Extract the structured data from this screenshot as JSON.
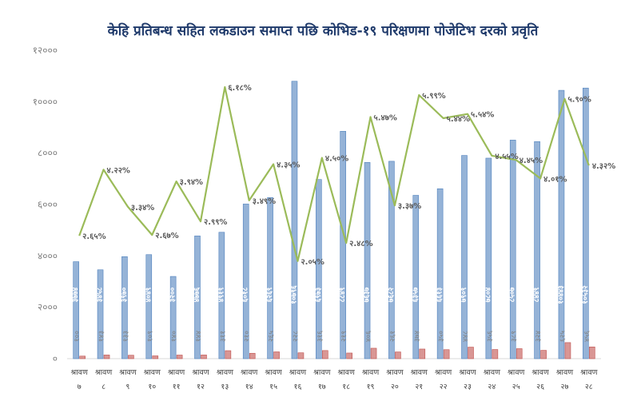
{
  "chart_data": {
    "type": "bar",
    "title": "केहि प्रतिबन्ध सहित लकडाउन समाप्त पछि कोभिड-१९ परिक्षणमा पोजेटिभ दरको प्रवृति",
    "ylim": [
      0,
      12000
    ],
    "yticks": [
      0,
      2000,
      4000,
      6000,
      8000,
      10000,
      12000
    ],
    "ytick_labels": [
      "०",
      "२०००",
      "४०००",
      "६०००",
      "८०००",
      "१००००",
      "१२०००"
    ],
    "grid": false,
    "legend": "none",
    "categories": [
      [
        "श्रावण",
        "७"
      ],
      [
        "श्रावण",
        "८"
      ],
      [
        "श्रावण",
        "९"
      ],
      [
        "श्रावण",
        "१०"
      ],
      [
        "श्रावण",
        "११"
      ],
      [
        "श्रावण",
        "१२"
      ],
      [
        "श्रावण",
        "१३"
      ],
      [
        "श्रावण",
        "१४"
      ],
      [
        "श्रावण",
        "१५"
      ],
      [
        "श्रावण",
        "१६"
      ],
      [
        "श्रावण",
        "१७"
      ],
      [
        "श्रावण",
        "१८"
      ],
      [
        "श्रावण",
        "१९"
      ],
      [
        "श्रावण",
        "२०"
      ],
      [
        "श्रावण",
        "२१"
      ],
      [
        "श्रावण",
        "२२"
      ],
      [
        "श्रावण",
        "२३"
      ],
      [
        "श्रावण",
        "२४"
      ],
      [
        "श्रावण",
        "२५"
      ],
      [
        "श्रावण",
        "२६"
      ],
      [
        "श्रावण",
        "२७"
      ],
      [
        "श्रावण",
        "२८"
      ]
    ],
    "series": [
      {
        "kind": "bar",
        "color": "#95b3d7",
        "values": [
          3774,
          3458,
          3970,
          4049,
          3200,
          4776,
          4919,
          6018,
          6269,
          10796,
          6973,
          8849,
          7637,
          7682,
          6357,
          6613,
          7909,
          7804,
          8507,
          8449,
          10443,
          10532
        ],
        "labels": [
          "३७७४",
          "३४५८",
          "३९७०",
          "४०४९",
          "३२००",
          "४७७६",
          "४९१९",
          "६०१८",
          "६२६९",
          "१०७९६",
          "६९७३",
          "८८४९",
          "७६३७",
          "७६८२",
          "६३५७",
          "६६१३",
          "७९०९",
          "७८०४",
          "८५०७",
          "८४४९",
          "१०४४३",
          "१०५३२"
        ]
      },
      {
        "kind": "bar",
        "color": "#d99694",
        "values": [
          100,
          143,
          133,
          109,
          140,
          144,
          311,
          210,
          265,
          228,
          316,
          219,
          406,
          261,
          374,
          350,
          448,
          356,
          389,
          324,
          625,
          456
        ],
        "labels": [
          "१००",
          "१४३",
          "१३३",
          "१०९",
          "१४०",
          "१४४",
          "३११",
          "२१०",
          "२६५",
          "२२८",
          "३१६",
          "२१९",
          "४०६",
          "२६१",
          "३७४",
          "३५०",
          "४४८",
          "३५६",
          "३८९",
          "३२४",
          "६२५",
          "४५६"
        ]
      },
      {
        "kind": "line",
        "color": "#9bbb59",
        "values": [
          2.65,
          4.22,
          3.34,
          2.67,
          3.94,
          2.99,
          6.18,
          3.49,
          4.35,
          2.05,
          4.5,
          2.48,
          5.47,
          3.37,
          5.99,
          5.44,
          5.54,
          4.55,
          4.45,
          4.01,
          5.9,
          4.32
        ],
        "labels": [
          "२.६५%",
          "४.२२%",
          "३.३४%",
          "२.६७%",
          "३.९४%",
          "२.९९%",
          "६.१८%",
          "३.४९%",
          "४.३५%",
          "२.०५%",
          "४.५०%",
          "२.४८%",
          "५.४७%",
          "३.३७%",
          "५.९९%",
          "५.४४%",
          "५.५४%",
          "४.५५%",
          "४.४५%",
          "४.०१%",
          "५.९०%",
          "४.३२%"
        ]
      }
    ]
  }
}
